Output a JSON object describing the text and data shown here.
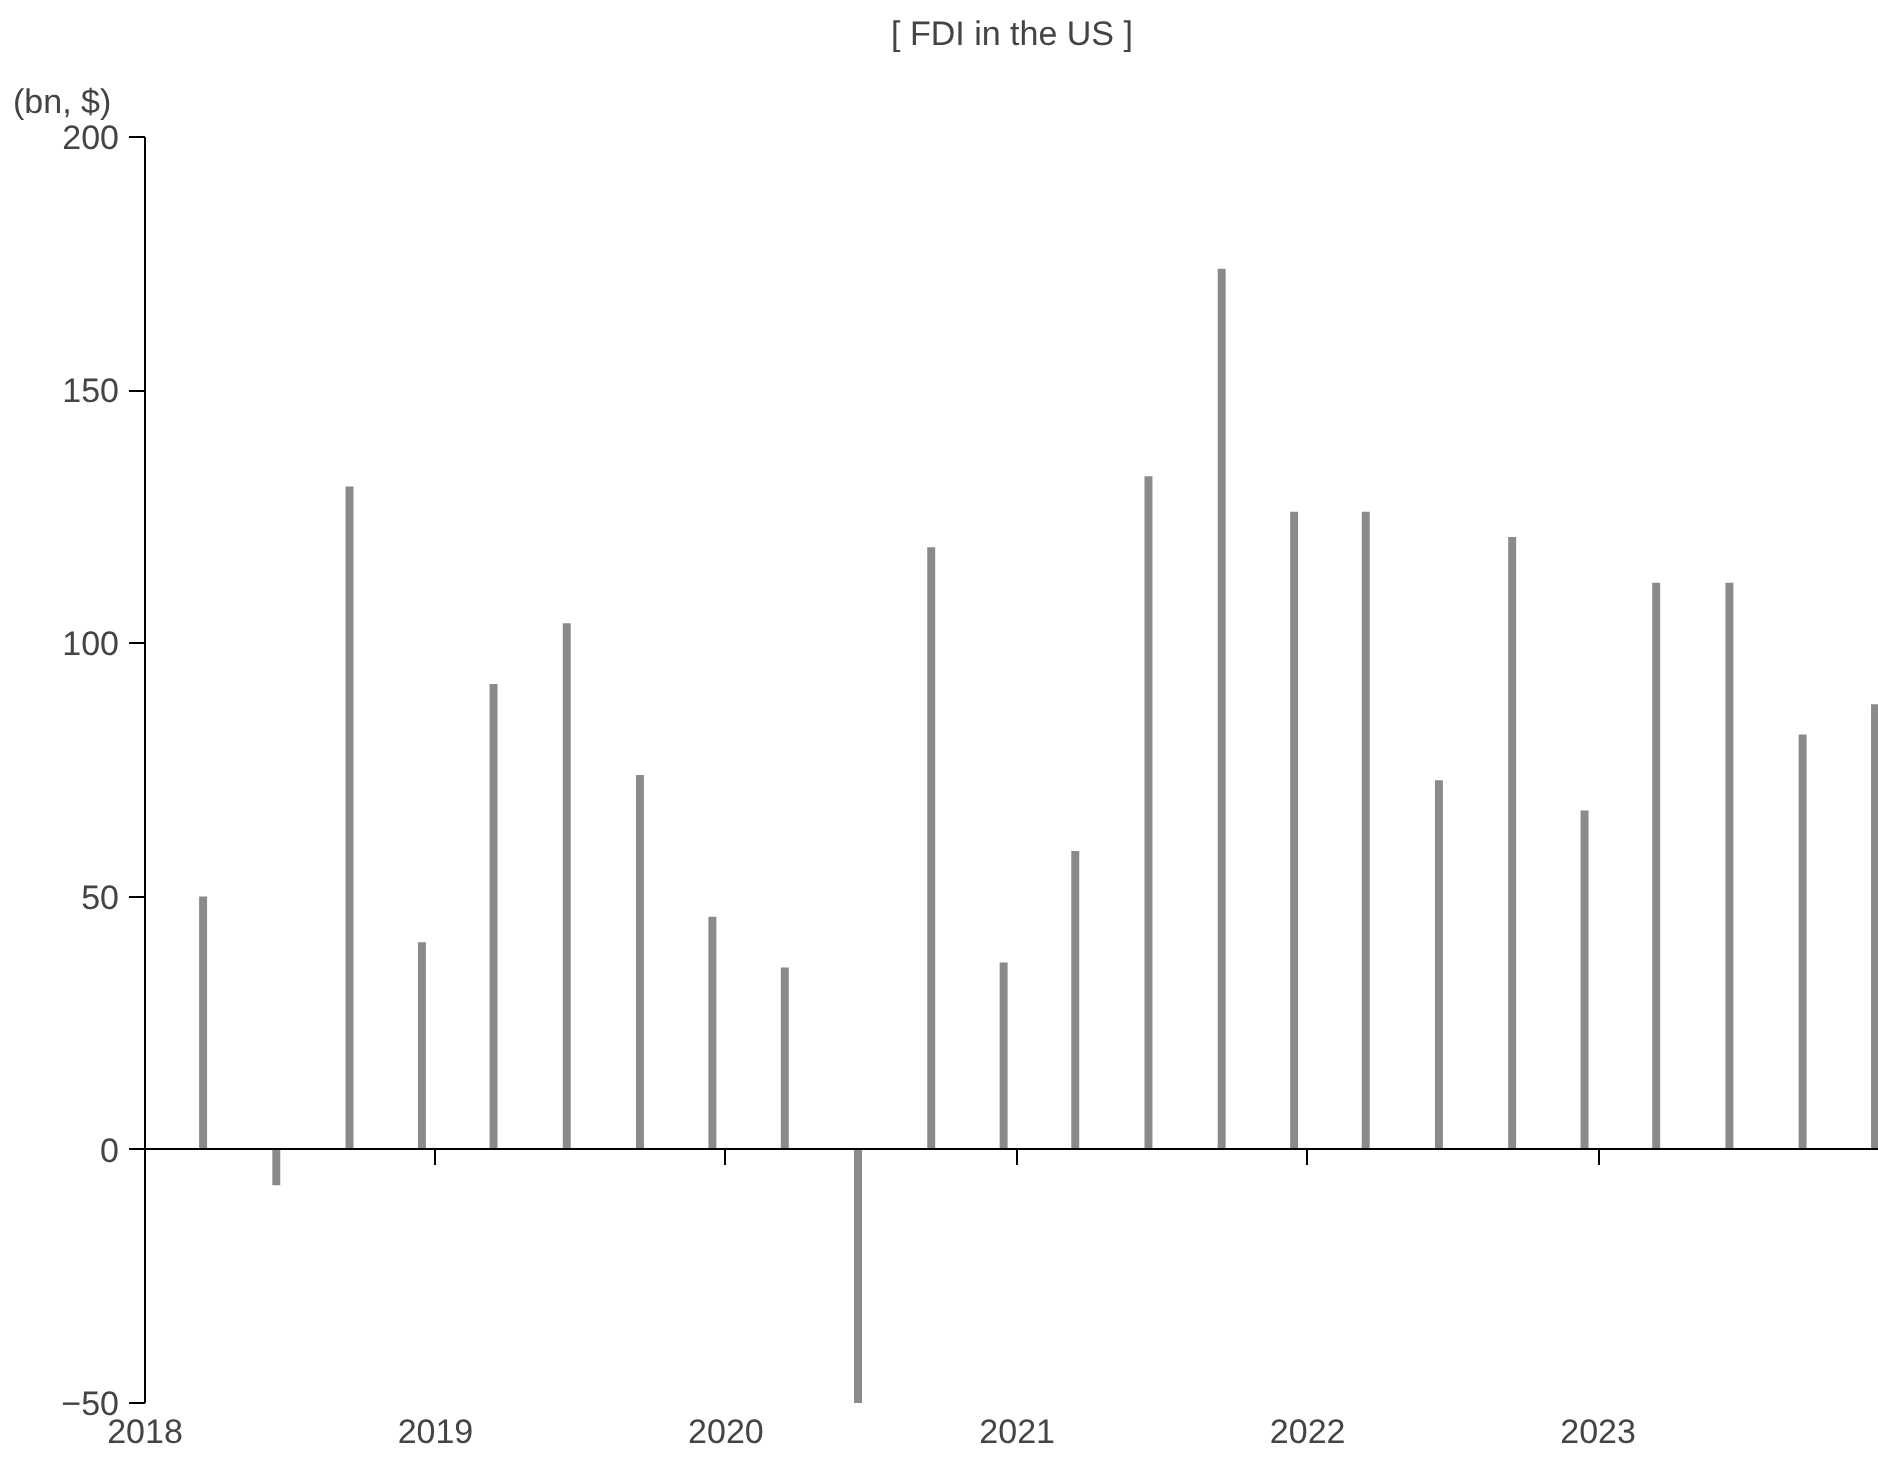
{
  "chart_data": {
    "type": "bar",
    "title": "[ FDI in the US ]",
    "ylabel": "(bn, $)",
    "x": [
      "2018-03-15",
      "2018-06-15",
      "2018-09-15",
      "2018-12-15",
      "2019-03-15",
      "2019-06-15",
      "2019-09-15",
      "2019-12-15",
      "2020-03-15",
      "2020-06-15",
      "2020-09-15",
      "2020-12-15",
      "2021-03-15",
      "2021-06-15",
      "2021-09-15",
      "2021-12-15",
      "2022-03-15",
      "2022-06-15",
      "2022-09-15",
      "2022-12-15",
      "2023-03-15",
      "2023-06-15",
      "2023-09-15",
      "2023-12-15"
    ],
    "values": [
      50,
      -7,
      131,
      41,
      92,
      104,
      74,
      46,
      36,
      -50,
      119,
      37,
      59,
      133,
      174,
      126,
      126,
      73,
      121,
      67,
      112,
      112,
      82,
      88
    ],
    "color": "#8a8a8a",
    "xlim": [
      "2018-01-01",
      "2023-12-20"
    ],
    "xticks": [
      "2018",
      "2019",
      "2020",
      "2021",
      "2022",
      "2023"
    ],
    "ylim": [
      -50,
      200
    ],
    "yticks": [
      -50,
      0,
      50,
      100,
      150,
      200
    ]
  }
}
